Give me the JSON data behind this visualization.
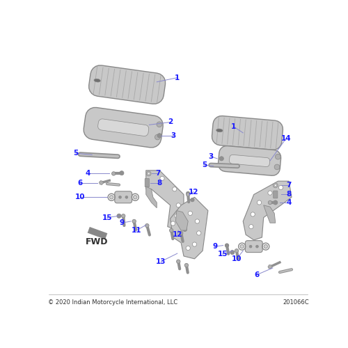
{
  "copyright": "© 2020 Indian Motorcycle International, LLC",
  "part_number": "201066C",
  "label_color": "#1a1aff",
  "line_color": "#8888cc",
  "bg_color": "#FFFFFF",
  "part_gray": "#C8C8C8",
  "part_edge": "#888888",
  "part_dark": "#A0A0A0"
}
